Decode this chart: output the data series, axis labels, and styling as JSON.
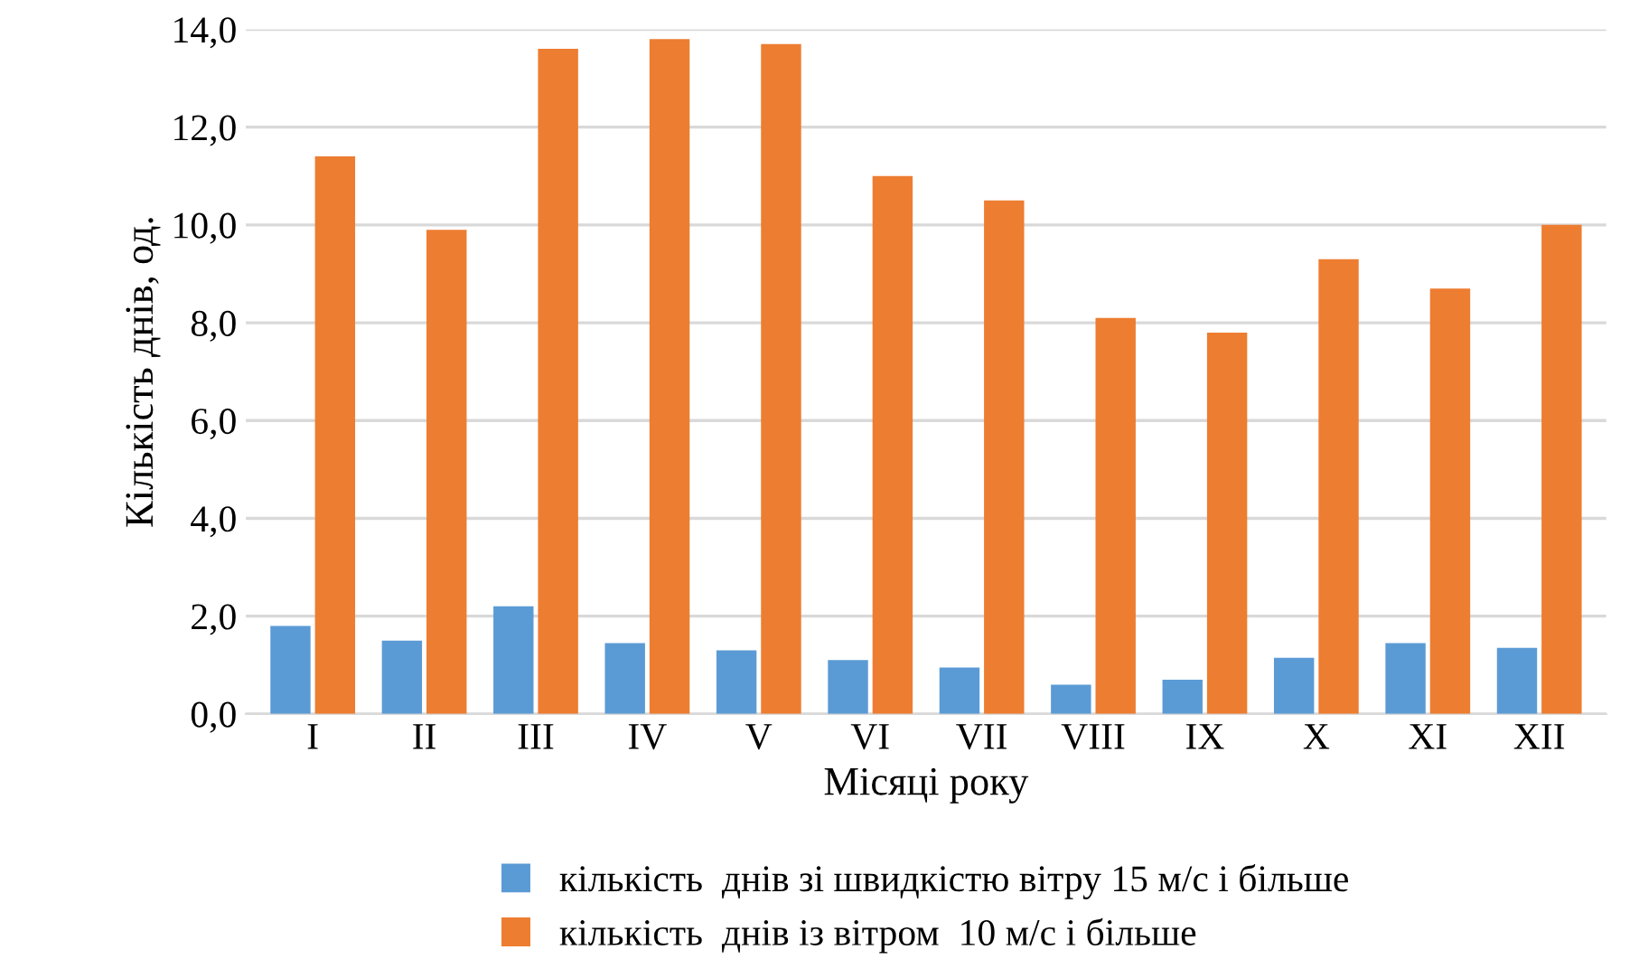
{
  "chart_data": {
    "type": "bar",
    "xlabel": "Місяці року",
    "ylabel": "Кількість днів, од.",
    "categories": [
      "I",
      "II",
      "III",
      "IV",
      "V",
      "VI",
      "VII",
      "VIII",
      "IX",
      "X",
      "XI",
      "XII"
    ],
    "series": [
      {
        "name": "кількість  днів зі швидкістю вітру 15 м/с і більше",
        "color": "#5b9bd5",
        "values": [
          1.8,
          1.5,
          2.2,
          1.45,
          1.3,
          1.1,
          0.95,
          0.6,
          0.7,
          1.15,
          1.45,
          1.35
        ]
      },
      {
        "name": "кількість  днів із вітром  10 м/с і більше",
        "color": "#ed7d31",
        "values": [
          11.4,
          9.9,
          13.6,
          13.8,
          13.7,
          11.0,
          10.5,
          8.1,
          7.8,
          9.3,
          8.7,
          10.0
        ]
      }
    ],
    "ylim": [
      0,
      14
    ],
    "yticks": [
      {
        "value": 0,
        "label": "0,0"
      },
      {
        "value": 2,
        "label": "2,0"
      },
      {
        "value": 4,
        "label": "4,0"
      },
      {
        "value": 6,
        "label": "6,0"
      },
      {
        "value": 8,
        "label": "8,0"
      },
      {
        "value": 10,
        "label": "10,0"
      },
      {
        "value": 12,
        "label": "12,0"
      },
      {
        "value": 14,
        "label": "14,0"
      }
    ],
    "grid": "y",
    "legend": "bottom"
  }
}
